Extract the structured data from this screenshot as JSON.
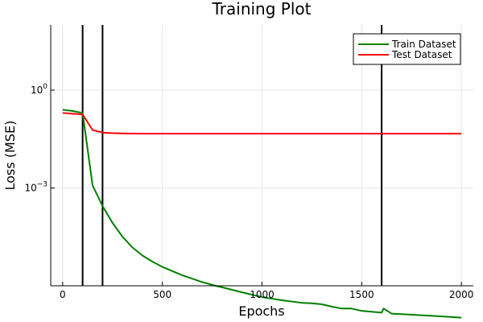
{
  "chart_data": {
    "type": "line",
    "title": "Training Plot",
    "xlabel": "Epochs",
    "ylabel": "Loss (MSE)",
    "xlim": [
      -60,
      2060
    ],
    "ylim_log10": [
      -6,
      2
    ],
    "yscale": "log",
    "grid": true,
    "legend_position": "top-right",
    "x_ticks": [
      {
        "value": 0,
        "label": "0"
      },
      {
        "value": 500,
        "label": "500"
      },
      {
        "value": 1000,
        "label": "1000"
      },
      {
        "value": 1500,
        "label": "1500"
      },
      {
        "value": 2000,
        "label": "2000"
      }
    ],
    "y_ticks": [
      {
        "value": 1,
        "base": "10",
        "exp": "0"
      },
      {
        "value": 0.001,
        "base": "10",
        "exp": "−3"
      }
    ],
    "vertical_lines": [
      100,
      200,
      1600
    ],
    "series": [
      {
        "name": "Train Dataset",
        "color": "#008000",
        "x": [
          0,
          50,
          100,
          150,
          200,
          250,
          300,
          350,
          400,
          450,
          500,
          600,
          700,
          780,
          800,
          900,
          1000,
          1100,
          1200,
          1250,
          1300,
          1350,
          1400,
          1450,
          1500,
          1550,
          1600,
          1610,
          1650,
          1700,
          1800,
          1900,
          2000
        ],
        "y": [
          0.25,
          0.23,
          0.2,
          0.0012,
          0.00028,
          8.5e-05,
          3.2e-05,
          1.5e-05,
          8.5e-06,
          5.5e-06,
          3.8e-06,
          2.1e-06,
          1.3e-06,
          9.5e-07,
          9e-07,
          6.3e-07,
          4.5e-07,
          3.6e-07,
          3e-07,
          2.9e-07,
          2.7e-07,
          2.3e-07,
          2e-07,
          2e-07,
          1.7e-07,
          1.6e-07,
          1.5e-07,
          2e-07,
          1.4e-07,
          1.35e-07,
          1.25e-07,
          1.15e-07,
          1.05e-07
        ]
      },
      {
        "name": "Test Dataset",
        "color": "#ff0000",
        "x": [
          0,
          50,
          100,
          150,
          200,
          250,
          300,
          400,
          500,
          1000,
          1500,
          2000
        ],
        "y": [
          0.2,
          0.19,
          0.18,
          0.06,
          0.05,
          0.048,
          0.047,
          0.0465,
          0.0465,
          0.0465,
          0.0465,
          0.0465
        ]
      }
    ]
  }
}
